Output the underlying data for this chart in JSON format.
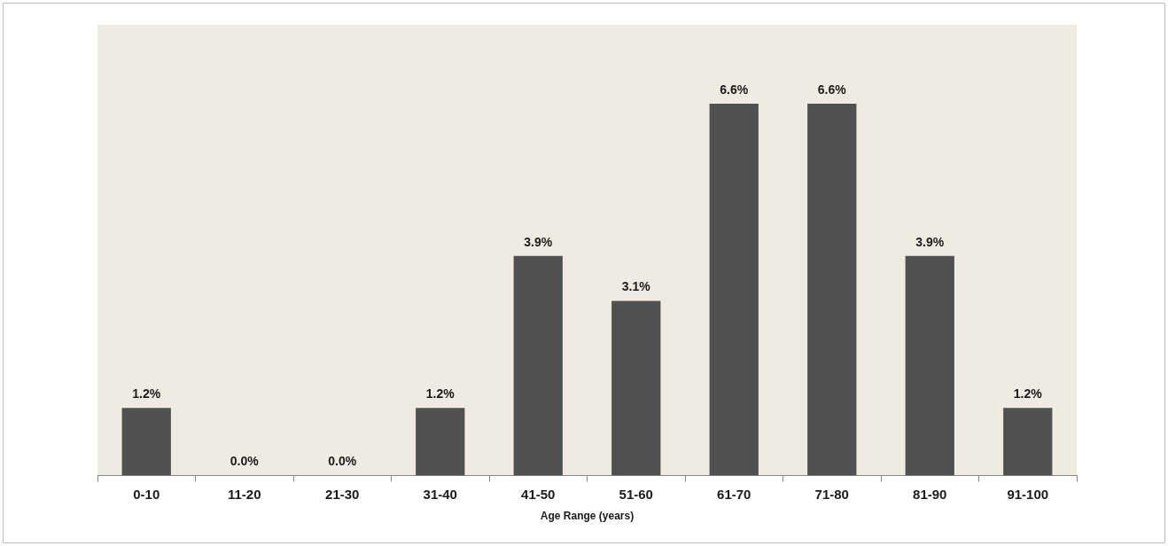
{
  "chart_data": {
    "type": "bar",
    "xlabel": "Age Range (years)",
    "categories": [
      "0-10",
      "11-20",
      "21-30",
      "31-40",
      "41-50",
      "51-60",
      "61-70",
      "71-80",
      "81-90",
      "91-100"
    ],
    "values": [
      1.2,
      0.0,
      0.0,
      1.2,
      3.9,
      3.1,
      6.6,
      6.6,
      3.9,
      1.2
    ],
    "value_labels": [
      "1.2%",
      "0.0%",
      "0.0%",
      "1.2%",
      "3.9%",
      "3.1%",
      "6.6%",
      "6.6%",
      "3.9%",
      "1.2%"
    ],
    "color": "#505050",
    "ylim": [
      0,
      8
    ],
    "grid": false,
    "legend": false
  }
}
